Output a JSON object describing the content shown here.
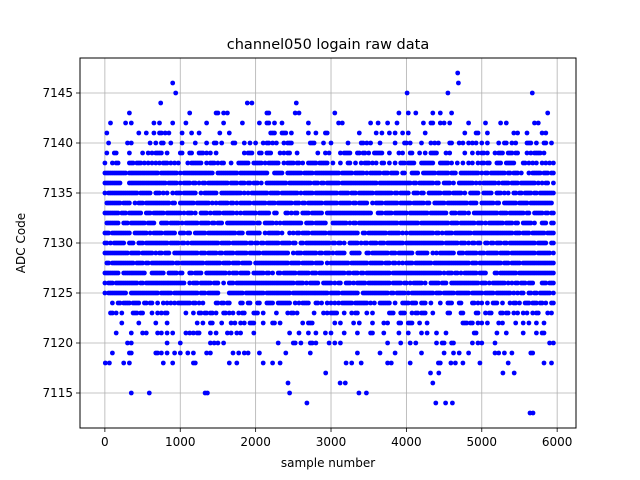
{
  "chart_data": {
    "type": "scatter",
    "title": "channel050 logain raw data",
    "xlabel": "sample number",
    "ylabel": "ADC Code",
    "xlim": [
      -330,
      6250
    ],
    "ylim": [
      7111.5,
      7148.5
    ],
    "x_ticks": [
      0,
      1000,
      2000,
      3000,
      4000,
      5000,
      6000
    ],
    "y_ticks": [
      7115,
      7120,
      7125,
      7130,
      7135,
      7140,
      7145
    ],
    "grid": true,
    "marker_color": "#0000ff",
    "x_range": [
      0,
      5950
    ],
    "sample_step": 25,
    "core_band": [
      7125,
      7137
    ],
    "outliers": [
      {
        "x": 900,
        "y": 7146
      },
      {
        "x": 940,
        "y": 7145
      },
      {
        "x": 4010,
        "y": 7145
      },
      {
        "x": 4550,
        "y": 7145
      },
      {
        "x": 4680,
        "y": 7147
      },
      {
        "x": 4690,
        "y": 7146
      },
      {
        "x": 5670,
        "y": 7145
      },
      {
        "x": 2540,
        "y": 7144
      },
      {
        "x": 1890,
        "y": 7144
      },
      {
        "x": 1950,
        "y": 7144
      },
      {
        "x": 740,
        "y": 7144
      },
      {
        "x": 2430,
        "y": 7116
      },
      {
        "x": 2450,
        "y": 7115
      },
      {
        "x": 1330,
        "y": 7115
      },
      {
        "x": 1360,
        "y": 7115
      },
      {
        "x": 350,
        "y": 7115
      },
      {
        "x": 590,
        "y": 7115
      },
      {
        "x": 3370,
        "y": 7115
      },
      {
        "x": 3470,
        "y": 7115
      },
      {
        "x": 2680,
        "y": 7114
      },
      {
        "x": 4390,
        "y": 7114
      },
      {
        "x": 4520,
        "y": 7114
      },
      {
        "x": 4610,
        "y": 7114
      },
      {
        "x": 5640,
        "y": 7113
      },
      {
        "x": 5680,
        "y": 7113
      },
      {
        "x": 5,
        "y": 7118
      },
      {
        "x": 60,
        "y": 7118
      },
      {
        "x": 100,
        "y": 7119
      },
      {
        "x": 4320,
        "y": 7117
      },
      {
        "x": 4350,
        "y": 7116
      },
      {
        "x": 4430,
        "y": 7117
      },
      {
        "x": 4590,
        "y": 7118
      },
      {
        "x": 5430,
        "y": 7117
      },
      {
        "x": 5280,
        "y": 7117
      },
      {
        "x": 5950,
        "y": 7120
      },
      {
        "x": 3120,
        "y": 7116
      },
      {
        "x": 3190,
        "y": 7116
      },
      {
        "x": 2930,
        "y": 7117
      },
      {
        "x": 1750,
        "y": 7118
      }
    ]
  }
}
